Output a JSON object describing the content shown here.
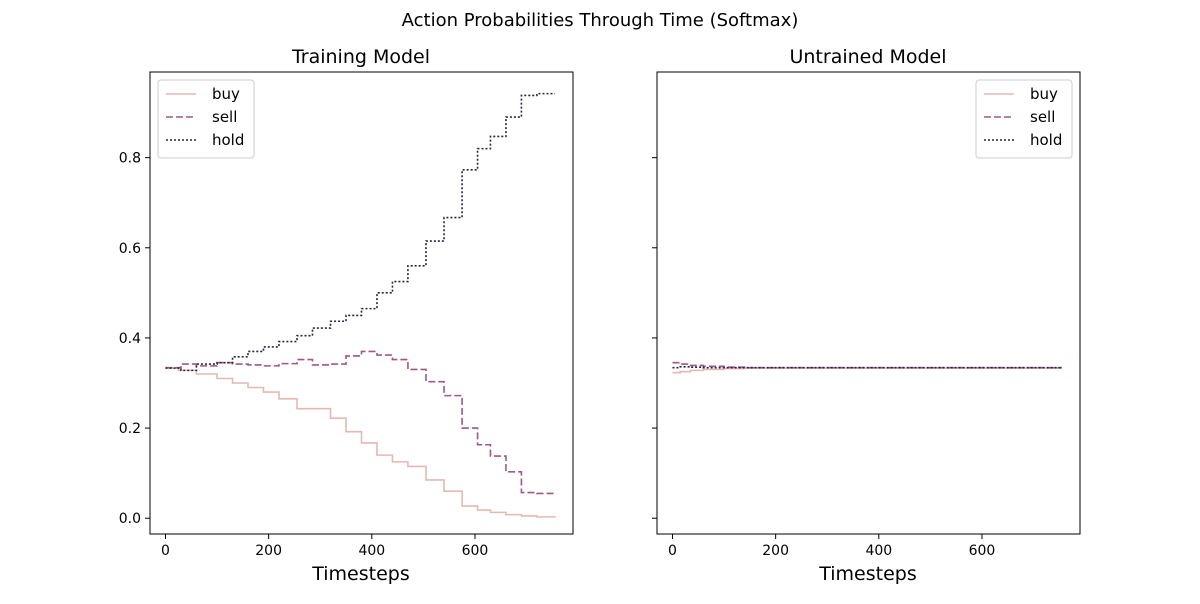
{
  "figure": {
    "suptitle": "Action Probabilities Through Time (Softmax)"
  },
  "series_styles": [
    {
      "name": "buy",
      "color": "#e4b9b1",
      "dash": ""
    },
    {
      "name": "sell",
      "color": "#9c5887",
      "dash": "7,3"
    },
    {
      "name": "hold",
      "color": "#2a2340",
      "dash": "2,2"
    }
  ],
  "chart_data": [
    {
      "type": "line",
      "title": "Training Model",
      "xlabel": "Timesteps",
      "ylabel": "",
      "xlim": [
        -30,
        790
      ],
      "ylim": [
        -0.035,
        0.99
      ],
      "xticks": [
        0,
        200,
        400,
        600
      ],
      "yticks": [
        0.0,
        0.2,
        0.4,
        0.6,
        0.8
      ],
      "ytick_labels": [
        "0.0",
        "0.2",
        "0.4",
        "0.6",
        "0.8"
      ],
      "legend": "top-left",
      "step": true,
      "series": [
        {
          "name": "buy",
          "x": [
            0,
            25,
            60,
            100,
            130,
            160,
            190,
            220,
            255,
            320,
            350,
            380,
            410,
            440,
            470,
            505,
            540,
            575,
            605,
            630,
            660,
            690,
            720,
            755
          ],
          "y": [
            0.333,
            0.328,
            0.32,
            0.31,
            0.3,
            0.29,
            0.28,
            0.265,
            0.243,
            0.222,
            0.192,
            0.167,
            0.14,
            0.125,
            0.115,
            0.085,
            0.06,
            0.027,
            0.018,
            0.013,
            0.008,
            0.005,
            0.003,
            0.002
          ]
        },
        {
          "name": "sell",
          "x": [
            0,
            30,
            60,
            100,
            130,
            160,
            190,
            220,
            255,
            285,
            320,
            350,
            380,
            410,
            440,
            470,
            505,
            540,
            575,
            605,
            630,
            660,
            690,
            720,
            755
          ],
          "y": [
            0.334,
            0.342,
            0.338,
            0.345,
            0.342,
            0.34,
            0.338,
            0.343,
            0.352,
            0.34,
            0.342,
            0.36,
            0.37,
            0.362,
            0.352,
            0.33,
            0.303,
            0.272,
            0.2,
            0.163,
            0.138,
            0.103,
            0.057,
            0.055,
            0.055
          ]
        },
        {
          "name": "hold",
          "x": [
            0,
            30,
            60,
            100,
            130,
            160,
            190,
            220,
            255,
            285,
            320,
            350,
            380,
            410,
            440,
            470,
            505,
            540,
            575,
            605,
            630,
            660,
            690,
            720,
            755
          ],
          "y": [
            0.333,
            0.328,
            0.342,
            0.345,
            0.358,
            0.37,
            0.38,
            0.392,
            0.405,
            0.422,
            0.437,
            0.45,
            0.465,
            0.5,
            0.525,
            0.56,
            0.615,
            0.667,
            0.773,
            0.82,
            0.847,
            0.89,
            0.938,
            0.942,
            0.942
          ]
        }
      ]
    },
    {
      "type": "line",
      "title": "Untrained Model",
      "xlabel": "Timesteps",
      "ylabel": "",
      "xlim": [
        -30,
        790
      ],
      "ylim": [
        -0.035,
        0.99
      ],
      "xticks": [
        0,
        200,
        400,
        600
      ],
      "yticks": [
        0.0,
        0.2,
        0.4,
        0.6,
        0.8
      ],
      "ytick_labels": [
        "",
        "",
        "",
        "",
        ""
      ],
      "legend": "top-right",
      "step": true,
      "series": [
        {
          "name": "buy",
          "x": [
            0,
            15,
            35,
            60,
            100,
            140,
            755
          ],
          "y": [
            0.323,
            0.325,
            0.328,
            0.33,
            0.332,
            0.333,
            0.333
          ]
        },
        {
          "name": "sell",
          "x": [
            0,
            15,
            35,
            60,
            100,
            140,
            755
          ],
          "y": [
            0.345,
            0.342,
            0.339,
            0.337,
            0.335,
            0.334,
            0.334
          ]
        },
        {
          "name": "hold",
          "x": [
            0,
            15,
            35,
            60,
            100,
            140,
            755
          ],
          "y": [
            0.334,
            0.336,
            0.335,
            0.334,
            0.334,
            0.334,
            0.334
          ]
        }
      ]
    }
  ]
}
